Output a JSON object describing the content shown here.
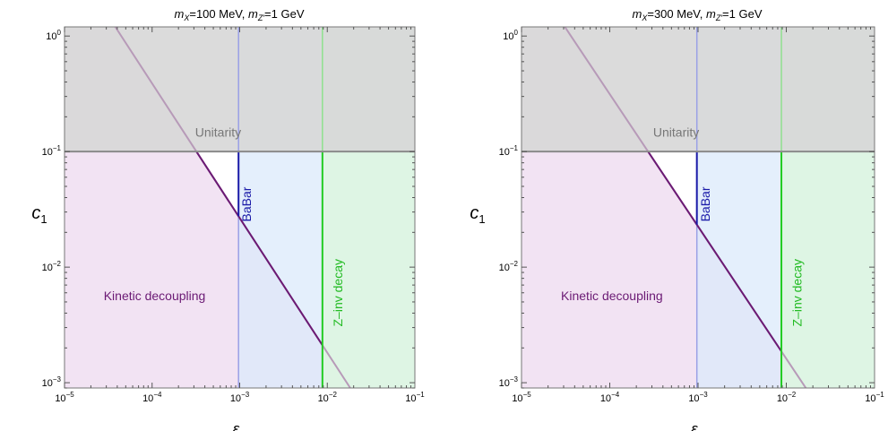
{
  "chart_data": [
    {
      "type": "area",
      "title": "m_X=100 MeV, m_Z'=1 GeV",
      "xlabel": "ε",
      "ylabel": "c1",
      "xscale": "log",
      "yscale": "log",
      "xlim": [
        1e-05,
        0.1
      ],
      "ylim": [
        0.0009,
        1.2
      ],
      "xticks": [
        {
          "v": 1e-05,
          "base": "10",
          "exp": "−5"
        },
        {
          "v": 0.0001,
          "base": "10",
          "exp": "−4"
        },
        {
          "v": 0.001,
          "base": "10",
          "exp": "−3"
        },
        {
          "v": 0.01,
          "base": "10",
          "exp": "−2"
        },
        {
          "v": 0.1,
          "base": "10",
          "exp": "−1"
        }
      ],
      "yticks": [
        {
          "v": 0.001,
          "base": "10",
          "exp": "−3"
        },
        {
          "v": 0.01,
          "base": "10",
          "exp": "−2"
        },
        {
          "v": 0.1,
          "base": "10",
          "exp": "−1"
        },
        {
          "v": 1,
          "base": "10",
          "exp": "0"
        }
      ],
      "unitarity_c1": 0.1,
      "babar_eps": 0.00097,
      "zinv_eps": 0.0088,
      "kinetic_line": {
        "eps": [
          3.8e-05,
          0.0183
        ],
        "c1": [
          1.2,
          0.0009
        ]
      },
      "labels": {
        "unitarity": "Unitarity",
        "babar": "BaBar",
        "zinv": "Z–inv decay",
        "kinetic": "Kinetic decoupling"
      },
      "label_pos": {
        "unitarity": [
          0.00031,
          0.135
        ],
        "babar": [
          0.00135,
          0.035
        ],
        "zinv": [
          0.0148,
          0.006
        ],
        "kinetic": [
          2.8e-05,
          0.0052
        ]
      },
      "colors": {
        "unitarity": "#d7d7d7",
        "babar": "#dbe9fb",
        "zinv": "#ddf6df",
        "kinetic": "#f1e2f2",
        "kinetic_line": "#6b1a74",
        "babar_line": "#1a1aa8",
        "zinv_line": "#22cc22",
        "unitarity_line": "#8a8a8a"
      }
    },
    {
      "type": "area",
      "title": "m_X=300 MeV, m_Z'=1 GeV",
      "xlabel": "ε",
      "ylabel": "c1",
      "xscale": "log",
      "yscale": "log",
      "xlim": [
        1e-05,
        0.1
      ],
      "ylim": [
        0.0009,
        1.2
      ],
      "xticks": [
        {
          "v": 1e-05,
          "base": "10",
          "exp": "−5"
        },
        {
          "v": 0.0001,
          "base": "10",
          "exp": "−4"
        },
        {
          "v": 0.001,
          "base": "10",
          "exp": "−3"
        },
        {
          "v": 0.01,
          "base": "10",
          "exp": "−2"
        },
        {
          "v": 0.1,
          "base": "10",
          "exp": "−1"
        }
      ],
      "yticks": [
        {
          "v": 0.001,
          "base": "10",
          "exp": "−3"
        },
        {
          "v": 0.01,
          "base": "10",
          "exp": "−2"
        },
        {
          "v": 0.1,
          "base": "10",
          "exp": "−1"
        },
        {
          "v": 1,
          "base": "10",
          "exp": "0"
        }
      ],
      "unitarity_c1": 0.1,
      "babar_eps": 0.00097,
      "zinv_eps": 0.0088,
      "kinetic_line": {
        "eps": [
          3.1e-05,
          0.0175
        ],
        "c1": [
          1.2,
          0.00085
        ]
      },
      "labels": {
        "unitarity": "Unitarity",
        "babar": "BaBar",
        "zinv": "Z–inv decay",
        "kinetic": "Kinetic decoupling"
      },
      "label_pos": {
        "unitarity": [
          0.00031,
          0.135
        ],
        "babar": [
          0.00135,
          0.035
        ],
        "zinv": [
          0.0148,
          0.006
        ],
        "kinetic": [
          2.8e-05,
          0.0052
        ]
      },
      "colors": {
        "unitarity": "#d7d7d7",
        "babar": "#dbe9fb",
        "zinv": "#ddf6df",
        "kinetic": "#f1e2f2",
        "kinetic_line": "#6b1a74",
        "babar_line": "#1a1aa8",
        "zinv_line": "#22cc22",
        "unitarity_line": "#8a8a8a"
      }
    }
  ]
}
